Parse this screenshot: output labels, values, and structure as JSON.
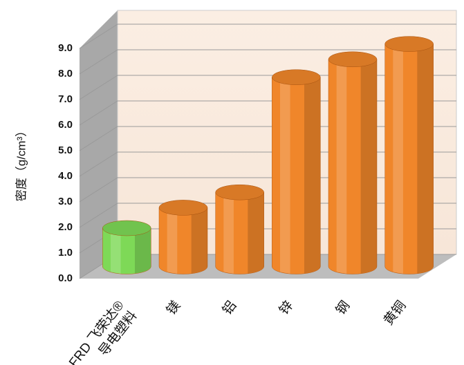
{
  "chart_data": {
    "type": "bar3d",
    "y_label": "密度（g/cm³）",
    "categories": [
      "FRD 飞荣达®\n导电塑料",
      "镁",
      "铝",
      "锌",
      "钢",
      "黄铜"
    ],
    "values": [
      1.5,
      2.3,
      2.9,
      7.4,
      8.1,
      8.7
    ],
    "colors": [
      "#7ed957",
      "#f0862a",
      "#f0862a",
      "#f0862a",
      "#f0862a",
      "#f0862a"
    ],
    "ylim": [
      0,
      9
    ],
    "yticks": [
      {
        "value": 0,
        "label": "0.0"
      },
      {
        "value": 1,
        "label": "1.0"
      },
      {
        "value": 2,
        "label": "2.0"
      },
      {
        "value": 3,
        "label": "3.0"
      },
      {
        "value": 4,
        "label": "4.0"
      },
      {
        "value": 5,
        "label": "5.0"
      },
      {
        "value": 6,
        "label": "6.0"
      },
      {
        "value": 7,
        "label": "7.0"
      },
      {
        "value": 8,
        "label": "8.0"
      },
      {
        "value": 9,
        "label": "9.0"
      }
    ],
    "grid": true
  }
}
